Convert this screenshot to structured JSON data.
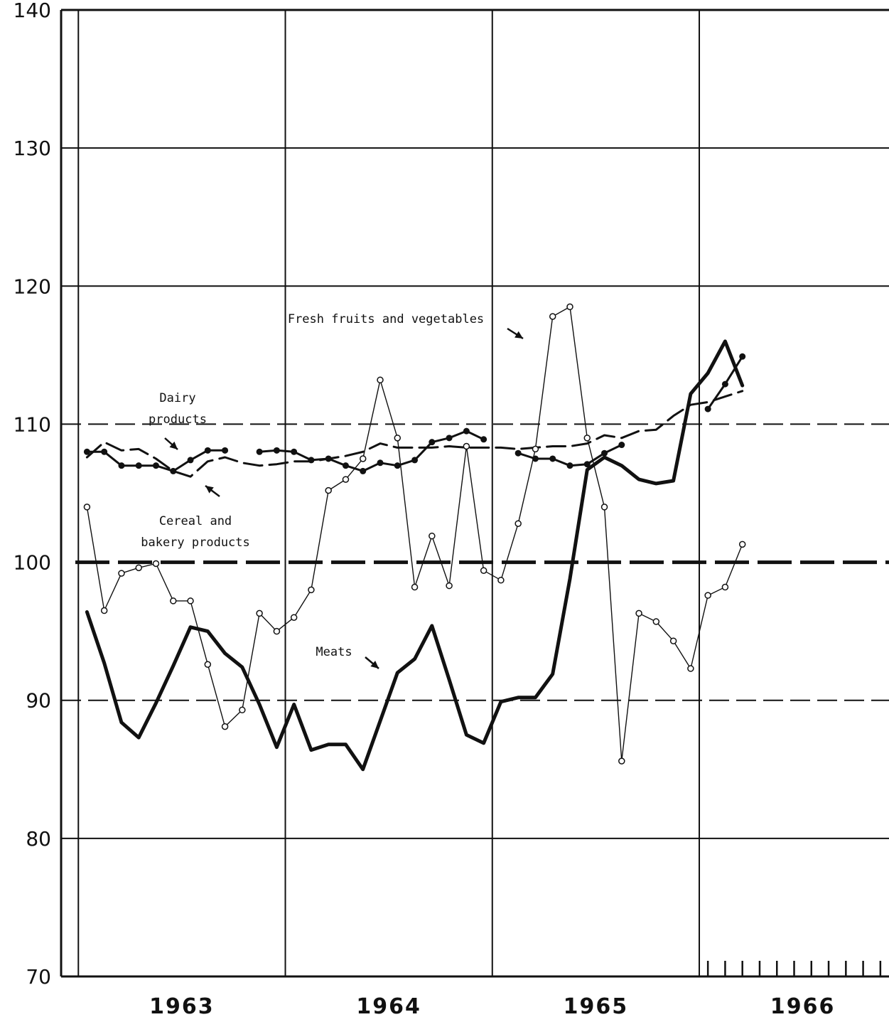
{
  "chart_data": {
    "type": "line",
    "x_unit": "month",
    "x_start": "1962-12",
    "x_end": "1966-12",
    "ylim": [
      70,
      140
    ],
    "y_ticks": [
      70,
      80,
      90,
      100,
      110,
      120,
      130,
      140
    ],
    "x_tick_labels": [
      "1963",
      "1964",
      "1965",
      "1966"
    ],
    "grid": true,
    "annotations": {
      "dairy": "Dairy\nproducts",
      "cereal": "Cereal and\nbakery products",
      "fresh": "Fresh fruits and vegetables",
      "meats": "Meats"
    },
    "series": [
      {
        "name": "Fresh fruits and vegetables",
        "style": "thin-open-circles",
        "x": [
          "1963-01",
          "1963-02",
          "1963-03",
          "1963-04",
          "1963-05",
          "1963-06",
          "1963-07",
          "1963-08",
          "1963-09",
          "1963-10",
          "1963-11",
          "1963-12",
          "1964-01",
          "1964-02",
          "1964-03",
          "1964-04",
          "1964-05",
          "1964-06",
          "1964-07",
          "1964-08",
          "1964-09",
          "1964-10",
          "1964-11",
          "1964-12",
          "1965-01",
          "1965-02",
          "1965-03",
          "1965-04",
          "1965-05",
          "1965-06",
          "1965-07",
          "1965-08",
          "1965-09",
          "1965-10",
          "1965-11",
          "1965-12",
          "1966-01",
          "1966-02",
          "1966-03",
          "1966-04",
          "1966-05"
        ],
        "values": [
          104,
          96.5,
          99.2,
          99.6,
          99.9,
          97.2,
          97.2,
          92.6,
          88.1,
          89.3,
          96.3,
          95.0,
          96.0,
          98.0,
          105.2,
          106.0,
          107.5,
          113.2,
          109.0,
          98.2,
          101.9,
          98.3,
          108.4,
          99.4,
          98.7,
          102.8,
          108.2,
          117.8,
          118.5,
          109.0,
          104.0,
          85.6,
          96.3,
          95.7,
          94.3,
          92.3,
          97.6,
          98.2,
          101.3,
          null,
          null
        ]
      },
      {
        "name": "Meats",
        "style": "heavy-solid",
        "x": [
          "1963-01",
          "1963-02",
          "1963-03",
          "1963-04",
          "1963-05",
          "1963-06",
          "1963-07",
          "1963-08",
          "1963-09",
          "1963-10",
          "1963-11",
          "1963-12",
          "1964-01",
          "1964-02",
          "1964-03",
          "1964-04",
          "1964-05",
          "1964-06",
          "1964-07",
          "1964-08",
          "1964-09",
          "1964-10",
          "1964-11",
          "1964-12",
          "1965-01",
          "1965-02",
          "1965-03",
          "1965-04",
          "1965-05",
          "1965-06",
          "1965-07",
          "1965-08",
          "1965-09",
          "1965-10",
          "1965-11",
          "1965-12",
          "1966-01",
          "1966-02",
          "1966-03",
          "1966-04",
          "1966-05"
        ],
        "values": [
          96.4,
          92.7,
          88.4,
          87.3,
          89.8,
          92.5,
          95.3,
          95.0,
          93.4,
          92.4,
          89.7,
          86.6,
          89.7,
          86.4,
          86.8,
          86.8,
          85.0,
          88.5,
          92.0,
          93.0,
          95.4,
          91.5,
          87.5,
          86.9,
          89.9,
          90.2,
          90.2,
          91.9,
          98.8,
          106.7,
          107.6,
          107.0,
          106.0,
          105.7,
          105.9,
          112.2,
          113.7,
          116.0,
          112.8,
          null,
          null
        ]
      },
      {
        "name": "Dairy products",
        "style": "medium-filled-dots",
        "x": [
          "1963-01",
          "1963-02",
          "1963-03",
          "1963-04",
          "1963-05",
          "1963-06",
          "1963-07",
          "1963-08",
          "1963-09",
          "1963-10",
          "1963-11",
          "1963-12",
          "1964-01",
          "1964-02",
          "1964-03",
          "1964-04",
          "1964-05",
          "1964-06",
          "1964-07",
          "1964-08",
          "1964-09",
          "1964-10",
          "1964-11",
          "1964-12",
          "1965-01",
          "1965-02",
          "1965-03",
          "1965-04",
          "1965-05",
          "1965-06",
          "1965-07",
          "1965-08",
          "1965-09",
          "1965-10",
          "1965-11",
          "1965-12",
          "1966-01",
          "1966-02",
          "1966-03",
          "1966-04",
          "1966-05"
        ],
        "values": [
          108.0,
          108.0,
          107.0,
          107.0,
          107.0,
          106.6,
          107.4,
          108.1,
          108.1,
          null,
          108.0,
          108.1,
          108.0,
          107.4,
          107.5,
          107.0,
          106.6,
          107.2,
          107.0,
          107.4,
          108.7,
          109.0,
          109.5,
          108.9,
          null,
          107.9,
          107.5,
          107.5,
          107.0,
          107.1,
          107.9,
          108.5,
          null,
          null,
          null,
          null,
          111.1,
          112.9,
          114.9,
          null,
          null
        ]
      },
      {
        "name": "Cereal and bakery products",
        "style": "dashed",
        "x": [
          "1963-01",
          "1963-02",
          "1963-03",
          "1963-04",
          "1963-05",
          "1963-06",
          "1963-07",
          "1963-08",
          "1963-09",
          "1963-10",
          "1963-11",
          "1963-12",
          "1964-01",
          "1964-02",
          "1964-03",
          "1964-04",
          "1964-05",
          "1964-06",
          "1964-07",
          "1964-08",
          "1964-09",
          "1964-10",
          "1964-11",
          "1964-12",
          "1965-01",
          "1965-02",
          "1965-03",
          "1965-04",
          "1965-05",
          "1965-06",
          "1965-07",
          "1965-08",
          "1965-09",
          "1965-10",
          "1965-11",
          "1965-12",
          "1966-01",
          "1966-02",
          "1966-03",
          "1966-04",
          "1966-05"
        ],
        "values": [
          107.6,
          108.7,
          108.1,
          108.2,
          107.5,
          106.6,
          106.2,
          107.3,
          107.6,
          107.2,
          107.0,
          107.1,
          107.3,
          107.3,
          107.5,
          107.7,
          108.0,
          108.6,
          108.3,
          108.3,
          108.3,
          108.4,
          108.3,
          108.3,
          108.3,
          108.2,
          108.3,
          108.4,
          108.4,
          108.6,
          109.2,
          109.0,
          109.5,
          109.6,
          110.6,
          111.4,
          111.6,
          112.0,
          112.4,
          null,
          null
        ]
      }
    ],
    "reference_line": {
      "value": 100,
      "style": "heavy-dashed"
    }
  }
}
